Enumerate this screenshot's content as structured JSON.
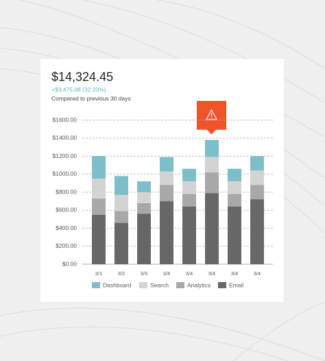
{
  "header": {
    "amount": "$14,324.45",
    "change": "+$3,475.08 (32.03%)",
    "comparison": "Compared to previous 30 days"
  },
  "chart_data": {
    "type": "stacked-bar",
    "categories": [
      "3/1",
      "3/2",
      "3/3",
      "3/4",
      "3/4",
      "3/4",
      "3/4",
      "3/4"
    ],
    "series": [
      {
        "name": "Dashboard",
        "color": "#7dbfc9",
        "values": [
          250,
          210,
          120,
          160,
          140,
          190,
          140,
          160
        ]
      },
      {
        "name": "Search",
        "color": "#d3d3d3",
        "values": [
          220,
          180,
          120,
          150,
          140,
          170,
          140,
          160
        ]
      },
      {
        "name": "Analytics",
        "color": "#a8a8a8",
        "values": [
          180,
          130,
          120,
          180,
          140,
          230,
          140,
          160
        ]
      },
      {
        "name": "Email",
        "color": "#676767",
        "values": [
          550,
          460,
          560,
          700,
          640,
          790,
          640,
          720
        ]
      }
    ],
    "ylim": [
      0,
      1600
    ],
    "yticks": [
      {
        "value": 0,
        "label": "$0.00"
      },
      {
        "value": 200,
        "label": "$200.00"
      },
      {
        "value": 400,
        "label": "$400.00"
      },
      {
        "value": 600,
        "label": "$600.00"
      },
      {
        "value": 800,
        "label": "$800.00"
      },
      {
        "value": 1000,
        "label": "$1000.00"
      },
      {
        "value": 1200,
        "label": "$1200.00"
      },
      {
        "value": 1400,
        "label": "$1400.00"
      },
      {
        "value": 1600,
        "label": "$1600.00"
      }
    ],
    "grid": true
  }
}
